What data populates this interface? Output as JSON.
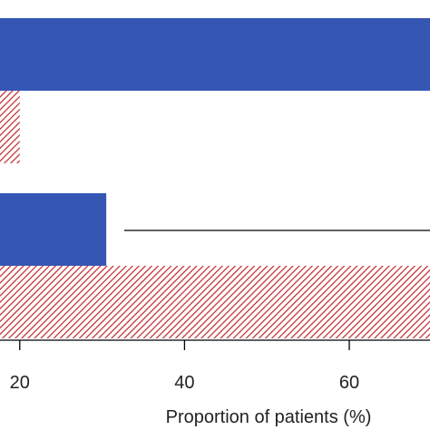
{
  "chart_data": {
    "type": "bar",
    "orientation": "horizontal",
    "xlabel": "Proportion of patients (%)",
    "xticks": [
      20,
      40,
      60
    ],
    "xlim": [
      17.6,
      69.8
    ],
    "groups": [
      {
        "bars": [
          {
            "style": "solid",
            "value": 70
          },
          {
            "style": "hatched",
            "value": 20
          }
        ]
      },
      {
        "bars": [
          {
            "style": "solid",
            "value": 30.5
          },
          {
            "style": "hatched",
            "value": 70
          }
        ]
      }
    ],
    "colors": {
      "solid": "#3656b4",
      "hatched": "#c0262d"
    },
    "grid": false
  }
}
